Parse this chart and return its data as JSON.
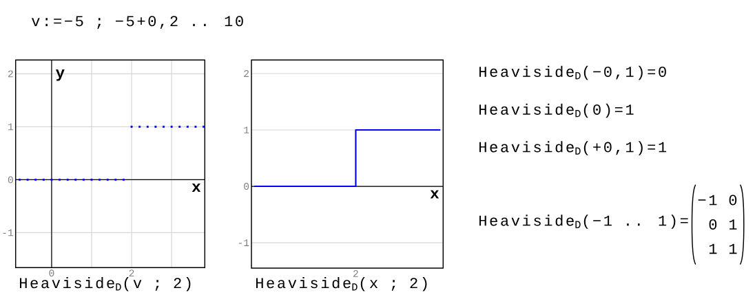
{
  "chart_data": [
    {
      "type": "other",
      "annotations": [
        "v:=−5 ; −5+0,2 .. 10"
      ]
    },
    {
      "type": "scatter",
      "xlabel": "x",
      "ylabel": "y",
      "x": [
        -0.8,
        -0.6,
        -0.4,
        -0.2,
        0,
        0.2,
        0.4,
        0.6,
        0.8,
        1,
        1.2,
        1.4,
        1.6,
        1.8,
        2,
        2.2,
        2.4,
        2.6,
        2.8,
        3,
        3.2,
        3.4,
        3.6,
        3.8
      ],
      "series": [
        {
          "color": "#0000ff",
          "values": [
            0,
            0,
            0,
            0,
            0,
            0,
            0,
            0,
            0,
            0,
            0,
            0,
            0,
            0,
            1,
            1,
            1,
            1,
            1,
            1,
            1,
            1,
            1,
            1
          ]
        }
      ],
      "xlim": [
        -0.9,
        3.83
      ],
      "ylim": [
        -1.66,
        2.26
      ],
      "xticks": [
        0,
        {
          "value": 1,
          "label": null
        },
        2,
        {
          "value": 3,
          "label": null
        }
      ],
      "yticks": [
        -1,
        0,
        1,
        2
      ],
      "grid": true,
      "marker": "square",
      "annotations": [
        "Heaviside$_{D}$(v ; 2)"
      ]
    },
    {
      "type": "step",
      "xlabel": "x",
      "categories": [
        null,
        null,
        null,
        null,
        null,
        null,
        null,
        null,
        null,
        null,
        null,
        null,
        null,
        null,
        null,
        null,
        null,
        null,
        "2",
        null,
        null,
        null,
        null,
        null,
        null,
        null,
        null,
        null,
        null,
        null,
        null,
        null,
        null,
        null
      ],
      "series": [
        {
          "color": "#0000ff",
          "values": [
            0,
            0,
            0,
            0,
            0,
            0,
            0,
            0,
            0,
            0,
            0,
            0,
            0,
            0,
            0,
            0,
            0,
            0,
            1,
            1,
            1,
            1,
            1,
            1,
            1,
            1,
            1,
            1,
            1,
            1,
            1,
            1,
            1,
            1
          ]
        }
      ],
      "ylim": [
        -1.45,
        2.24
      ],
      "yticks": [
        -1,
        0,
        1,
        2
      ],
      "grid": "y",
      "annotations": [
        "Heaviside$_{D}$(x ; 2)"
      ]
    },
    {
      "type": "other",
      "annotations": [
        "Heaviside$_{D}$(−0,1)=0",
        "Heaviside$_{D}$(0)=1",
        "Heaviside$_{D}$(+0,1)=1",
        "Heaviside$_{D}$(−1 .. 1)=",
        "−1 0",
        "0 1",
        "1 1"
      ]
    }
  ]
}
